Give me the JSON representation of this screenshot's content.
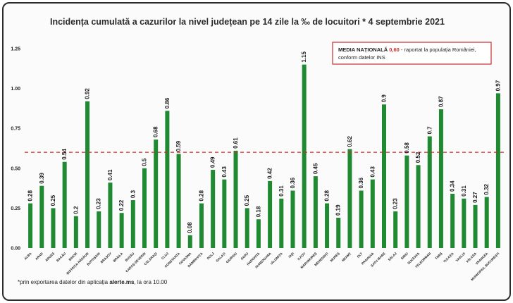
{
  "chart_data": {
    "type": "bar",
    "title": "Incidența cumulată a cazurilor la nivel județean pe 14 zile la ‰ de locuitori * 4 septembrie 2021",
    "categories": [
      "ALBA",
      "ARAD",
      "ARGEȘ",
      "BACĂU",
      "BIHOR",
      "BISTRIȚA-NĂSĂUD",
      "BOTOȘANI",
      "BRAȘOV",
      "BRĂILA",
      "BUZĂU",
      "CARAȘ-SEVERIN",
      "CĂLĂRAȘI",
      "CLUJ",
      "CONSTANȚA",
      "COVASNA",
      "DÂMBOVIȚA",
      "DOLJ",
      "GALAȚI",
      "GIURGIU",
      "GORJ",
      "HARGHITA",
      "HUNEDOARA",
      "IALOMIȚA",
      "IAȘI",
      "ILFOV",
      "MARAMUREȘ",
      "MEHEDINȚI",
      "MUREȘ",
      "NEAMȚ",
      "OLT",
      "PRAHOVA",
      "SATU MARE",
      "SĂLAJ",
      "SIBIU",
      "SUCEAVA",
      "TELEORMAN",
      "TIMIȘ",
      "TULCEA",
      "VASLUI",
      "VÂLCEA",
      "VRANCEA",
      "MUNICIPIUL BUCUREȘTI"
    ],
    "values": [
      0.28,
      0.39,
      0.25,
      0.54,
      0.2,
      0.92,
      0.23,
      0.41,
      0.22,
      0.3,
      0.5,
      0.68,
      0.86,
      0.59,
      0.08,
      0.28,
      0.49,
      0.43,
      0.61,
      0.25,
      0.18,
      0.42,
      0.31,
      0.36,
      1.15,
      0.45,
      0.28,
      0.19,
      0.62,
      0.36,
      0.43,
      0.9,
      0.23,
      0.58,
      0.52,
      0.7,
      0.87,
      0.34,
      0.31,
      0.27,
      0.32,
      0.97
    ],
    "value_labels": [
      "0.28",
      "0.39",
      "0.25",
      "0.54",
      "0.2",
      "0.92",
      "0.23",
      "0.41",
      "0.22",
      "0.3",
      "0.5",
      "0.68",
      "0.86",
      "0.59",
      "0.08",
      "0.28",
      "0.49",
      "0.43",
      "0.61",
      "0.25",
      "0.18",
      "0.42",
      "0.31",
      "0.36",
      "1.15",
      "0.45",
      "0.28",
      "0.19",
      "0.62",
      "0.36",
      "0.43",
      "0.9",
      "0.23",
      "0.58",
      "0.52",
      "0.7",
      "0.87",
      "0.34",
      "0.31",
      "0.27",
      "0.32",
      "0.97"
    ],
    "ylim": [
      0,
      1.25
    ],
    "yticks": [
      "0.00",
      "0.25",
      "0.50",
      "0.75",
      "1.00",
      "1.25"
    ],
    "reference_line": {
      "value": 0.6,
      "style": "dashed",
      "color": "#d42a2a"
    },
    "bar_color": "#1f8a32",
    "grid": false,
    "legend_box": {
      "placement": "top-right",
      "line1_bold": "MEDIA NAȚIONALĂ",
      "line1_value": "0,60",
      "line1_rest": " - raportat la populația României,",
      "line2": "conform datelor INS",
      "value_color": "#d42a2a",
      "border_color": "#c43030"
    }
  },
  "footnote": {
    "prefix": "*prin exportarea datelor din aplicația ",
    "bold": "alerte.ms",
    "suffix": ", la ora 10.00"
  }
}
